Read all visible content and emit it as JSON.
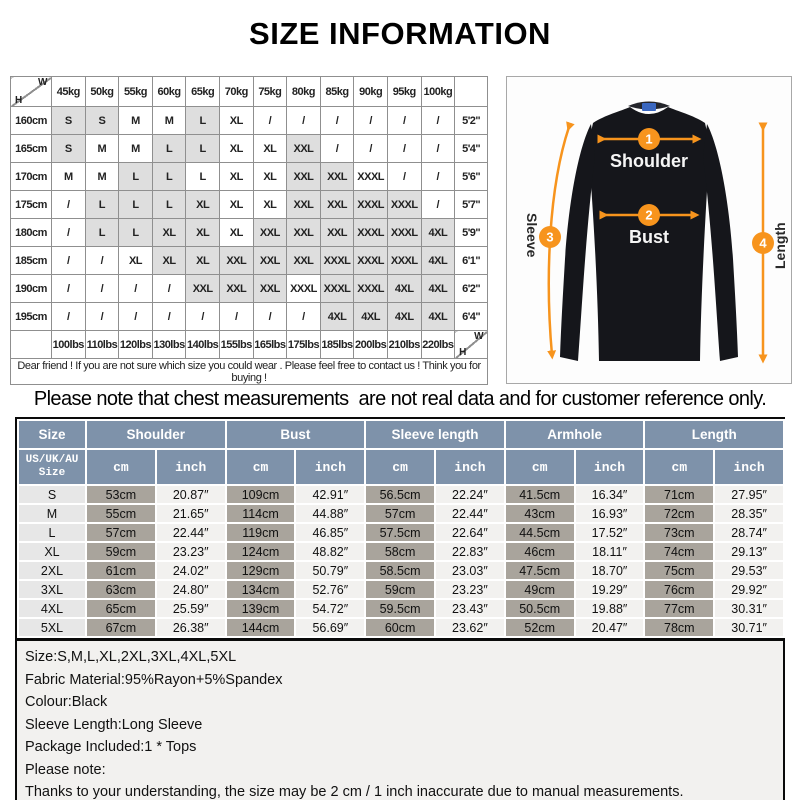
{
  "title": "SIZE INFORMATION",
  "colors": {
    "accent_orange": "#f7941d",
    "header_blue": "#7e92aa",
    "cm_cell": "#a9a49c",
    "shirt_black": "#15161b",
    "tag_blue": "#3a67c0"
  },
  "matrix": {
    "corner_w": "W",
    "corner_h": "H",
    "weights": [
      "45kg",
      "50kg",
      "55kg",
      "60kg",
      "65kg",
      "70kg",
      "75kg",
      "80kg",
      "85kg",
      "90kg",
      "95kg",
      "100kg"
    ],
    "rows": [
      {
        "height": "160cm",
        "cells": [
          "S",
          "S",
          "M",
          "M",
          "L",
          "XL",
          "/",
          "/",
          "/",
          "/",
          "/",
          "/"
        ],
        "shaded": [
          0,
          1,
          4
        ],
        "ft": "5'2\""
      },
      {
        "height": "165cm",
        "cells": [
          "S",
          "M",
          "M",
          "L",
          "L",
          "XL",
          "XL",
          "XXL",
          "/",
          "/",
          "/",
          "/"
        ],
        "shaded": [
          0,
          3,
          4,
          7
        ],
        "ft": "5'4\""
      },
      {
        "height": "170cm",
        "cells": [
          "M",
          "M",
          "L",
          "L",
          "L",
          "XL",
          "XL",
          "XXL",
          "XXL",
          "XXXL",
          "/",
          "/"
        ],
        "shaded": [
          2,
          3,
          7,
          8
        ],
        "ft": "5'6\""
      },
      {
        "height": "175cm",
        "cells": [
          "/",
          "L",
          "L",
          "L",
          "XL",
          "XL",
          "XL",
          "XXL",
          "XXL",
          "XXXL",
          "XXXL",
          "/"
        ],
        "shaded": [
          1,
          2,
          3,
          4,
          7,
          8,
          9,
          10
        ],
        "ft": "5'7\""
      },
      {
        "height": "180cm",
        "cells": [
          "/",
          "L",
          "L",
          "XL",
          "XL",
          "XL",
          "XXL",
          "XXL",
          "XXL",
          "XXXL",
          "XXXL",
          "4XL"
        ],
        "shaded": [
          1,
          2,
          3,
          4,
          6,
          7,
          8,
          9,
          10,
          11
        ],
        "ft": "5'9\""
      },
      {
        "height": "185cm",
        "cells": [
          "/",
          "/",
          "XL",
          "XL",
          "XL",
          "XXL",
          "XXL",
          "XXL",
          "XXXL",
          "XXXL",
          "XXXL",
          "4XL"
        ],
        "shaded": [
          3,
          4,
          5,
          6,
          7,
          8,
          9,
          10,
          11
        ],
        "ft": "6'1\""
      },
      {
        "height": "190cm",
        "cells": [
          "/",
          "/",
          "/",
          "/",
          "XXL",
          "XXL",
          "XXL",
          "XXXL",
          "XXXL",
          "XXXL",
          "4XL",
          "4XL"
        ],
        "shaded": [
          4,
          5,
          6,
          8,
          9,
          10,
          11
        ],
        "ft": "6'2\""
      },
      {
        "height": "195cm",
        "cells": [
          "/",
          "/",
          "/",
          "/",
          "/",
          "/",
          "/",
          "/",
          "4XL",
          "4XL",
          "4XL",
          "4XL"
        ],
        "shaded": [
          8,
          9,
          10,
          11
        ],
        "ft": "6'4\""
      }
    ],
    "lbs": [
      "100lbs",
      "110lbs",
      "120lbs",
      "130lbs",
      "140lbs",
      "155lbs",
      "165lbs",
      "175lbs",
      "185lbs",
      "200lbs",
      "210lbs",
      "220lbs"
    ],
    "note": "Dear friend ! If you are not sure which size you could wear . Please feel free to contact us ! Think you for buying !"
  },
  "figure": {
    "marker_1": "1",
    "marker_2": "2",
    "marker_3": "3",
    "marker_4": "4",
    "label_shoulder": "Shoulder",
    "label_bust": "Bust",
    "label_sleeve": "Sleeve",
    "label_length": "Length"
  },
  "notice": "Please note that chest measurements  are not real data and for customer reference only.",
  "size_table": {
    "groups": [
      "Size",
      "Shoulder",
      "Bust",
      "Sleeve length",
      "Armhole",
      "Length"
    ],
    "us_label": "US/UK/AU\nSize",
    "unit_cm": "cm",
    "unit_inch": "inch",
    "rows": [
      {
        "size": "S",
        "values": [
          "53cm",
          "20.87″",
          "109cm",
          "42.91″",
          "56.5cm",
          "22.24″",
          "41.5cm",
          "16.34″",
          "71cm",
          "27.95″"
        ]
      },
      {
        "size": "M",
        "values": [
          "55cm",
          "21.65″",
          "114cm",
          "44.88″",
          "57cm",
          "22.44″",
          "43cm",
          "16.93″",
          "72cm",
          "28.35″"
        ]
      },
      {
        "size": "L",
        "values": [
          "57cm",
          "22.44″",
          "119cm",
          "46.85″",
          "57.5cm",
          "22.64″",
          "44.5cm",
          "17.52″",
          "73cm",
          "28.74″"
        ]
      },
      {
        "size": "XL",
        "values": [
          "59cm",
          "23.23″",
          "124cm",
          "48.82″",
          "58cm",
          "22.83″",
          "46cm",
          "18.11″",
          "74cm",
          "29.13″"
        ]
      },
      {
        "size": "2XL",
        "values": [
          "61cm",
          "24.02″",
          "129cm",
          "50.79″",
          "58.5cm",
          "23.03″",
          "47.5cm",
          "18.70″",
          "75cm",
          "29.53″"
        ]
      },
      {
        "size": "3XL",
        "values": [
          "63cm",
          "24.80″",
          "134cm",
          "52.76″",
          "59cm",
          "23.23″",
          "49cm",
          "19.29″",
          "76cm",
          "29.92″"
        ]
      },
      {
        "size": "4XL",
        "values": [
          "65cm",
          "25.59″",
          "139cm",
          "54.72″",
          "59.5cm",
          "23.43″",
          "50.5cm",
          "19.88″",
          "77cm",
          "30.31″"
        ]
      },
      {
        "size": "5XL",
        "values": [
          "67cm",
          "26.38″",
          "144cm",
          "56.69″",
          "60cm",
          "23.62″",
          "52cm",
          "20.47″",
          "78cm",
          "30.71″"
        ]
      }
    ]
  },
  "details": [
    "Size:S,M,L,XL,2XL,3XL,4XL,5XL",
    "Fabric Material:95%Rayon+5%Spandex",
    "Colour:Black",
    "Sleeve Length:Long Sleeve",
    "Package Included:1 * Tops",
    "Please note:",
    "Thanks to your understanding, the size may be 2 cm / 1 inch inaccurate due to manual measurements."
  ]
}
